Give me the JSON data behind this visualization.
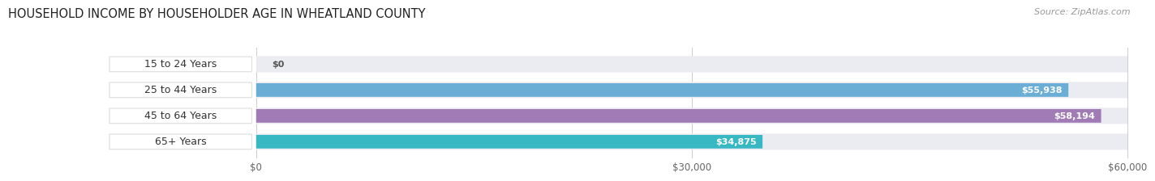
{
  "title": "HOUSEHOLD INCOME BY HOUSEHOLDER AGE IN WHEATLAND COUNTY",
  "source_text": "Source: ZipAtlas.com",
  "categories": [
    "15 to 24 Years",
    "25 to 44 Years",
    "45 to 64 Years",
    "65+ Years"
  ],
  "values": [
    0,
    55938,
    58194,
    34875
  ],
  "bar_colors": [
    "#f4a0a0",
    "#6aaed6",
    "#a07bb5",
    "#38b8c2"
  ],
  "track_color": "#ebebf2",
  "value_labels": [
    "$0",
    "$55,938",
    "$58,194",
    "$34,875"
  ],
  "xmax": 60000,
  "xticks": [
    0,
    30000,
    60000
  ],
  "xtick_labels": [
    "$0",
    "$30,000",
    "$60,000"
  ],
  "bar_height": 0.52,
  "title_fontsize": 10.5,
  "source_fontsize": 8,
  "label_fontsize": 9,
  "value_fontsize": 8,
  "tick_fontsize": 8.5,
  "background_color": "#ffffff"
}
